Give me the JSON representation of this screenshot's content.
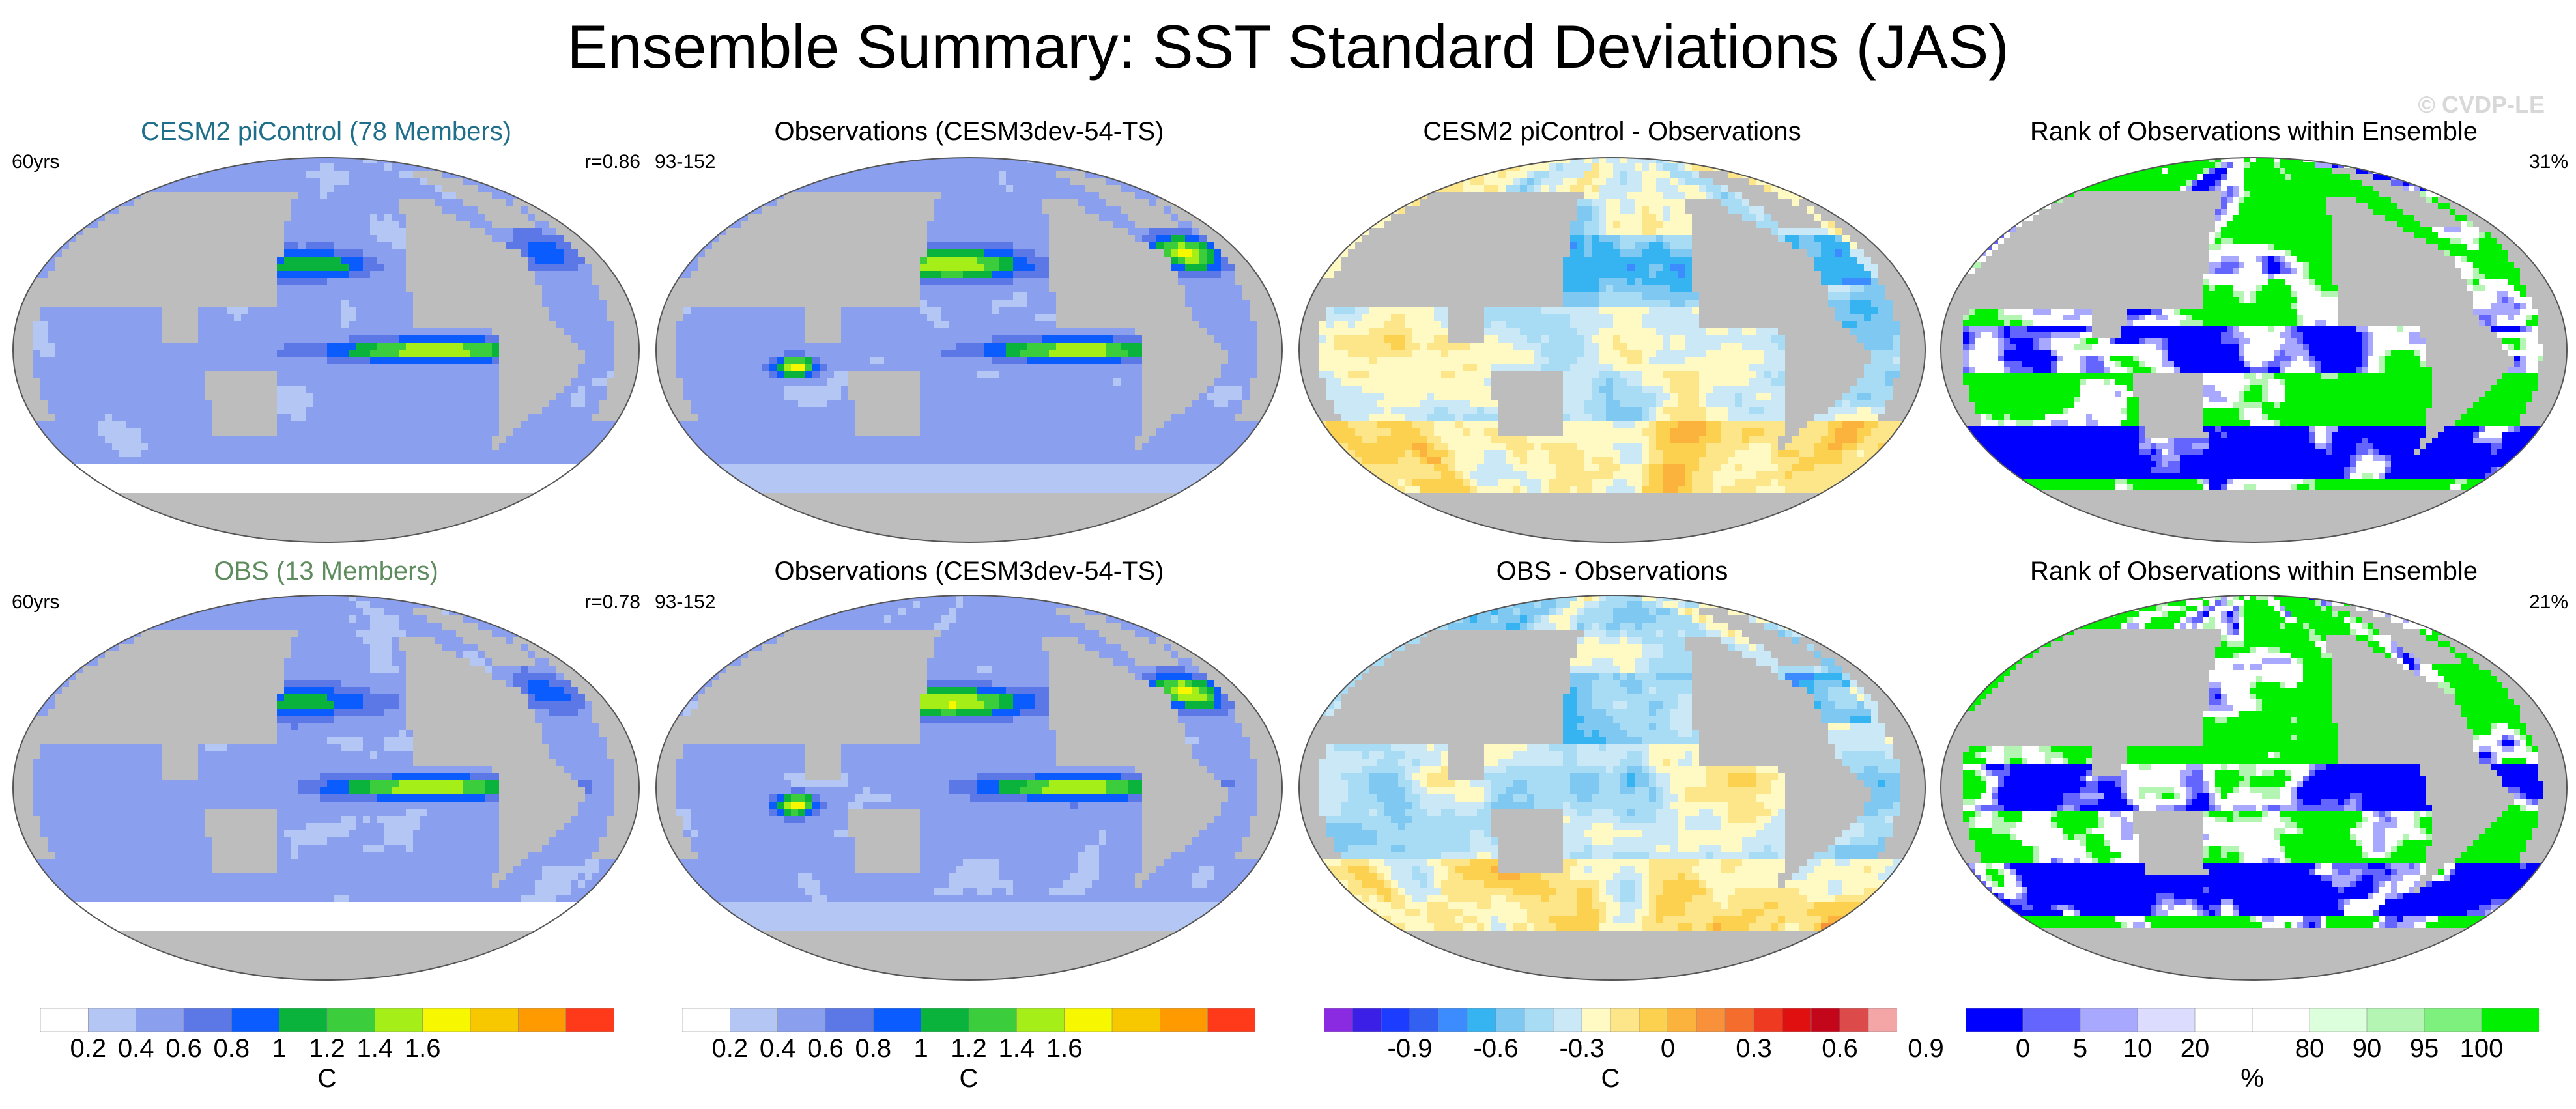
{
  "page": {
    "title": "Ensemble Summary: SST Standard Deviations (JAS)",
    "copyright": "© CVDP-LE"
  },
  "colors": {
    "land": "#bdbdbd",
    "sd_scale": [
      "#ffffff",
      "#b4c6f4",
      "#8aa0ef",
      "#5b78e6",
      "#0a5cff",
      "#0ab43c",
      "#3ccd3c",
      "#a6ee17",
      "#f7f700",
      "#f7c800",
      "#ff9a00",
      "#ff3a1a"
    ],
    "diff_scale": [
      "#8a2be2",
      "#3c1fe6",
      "#1c3cff",
      "#3260f0",
      "#3c8cff",
      "#36b4f2",
      "#7ec8f2",
      "#a8dcf4",
      "#cbe8f7",
      "#fff9c4",
      "#fde68a",
      "#fdd150",
      "#fbb33d",
      "#f8913a",
      "#f46d2c",
      "#ef3a22",
      "#e01010",
      "#c4061a",
      "#dd4a4a",
      "#f4a5a5"
    ],
    "rank_scale": [
      "#0000ff",
      "#6464ff",
      "#a8a8ff",
      "#dcdcff",
      "#ffffff",
      "#ffffff",
      "#dcffdc",
      "#b4f5b4",
      "#7ef07e",
      "#00f000"
    ]
  },
  "panels": [
    {
      "title": "CESM2 piControl (78 Members)",
      "left_note": "60yrs",
      "right_note": "r=0.86",
      "map_type": "sd"
    },
    {
      "title": "Observations (CESM3dev-54-TS)",
      "left_note": "93-152",
      "right_note": "",
      "map_type": "sd_obs"
    },
    {
      "title": "CESM2 piControl - Observations",
      "left_note": "",
      "right_note": "",
      "map_type": "diff"
    },
    {
      "title": "Rank of Observations within Ensemble",
      "left_note": "",
      "right_note": "31%",
      "map_type": "rank"
    },
    {
      "title": "OBS (13 Members)",
      "left_note": "60yrs",
      "right_note": "r=0.78",
      "map_type": "sd"
    },
    {
      "title": "Observations (CESM3dev-54-TS)",
      "left_note": "93-152",
      "right_note": "",
      "map_type": "sd_obs"
    },
    {
      "title": "OBS - Observations",
      "left_note": "",
      "right_note": "",
      "map_type": "diff"
    },
    {
      "title": "Rank of Observations within Ensemble",
      "left_note": "",
      "right_note": "21%",
      "map_type": "rank"
    }
  ],
  "chart_data": [
    {
      "type": "heatmap",
      "title": "CESM2 piControl (78 Members)",
      "variable": "SST standard deviation",
      "units": "C",
      "colorbar_levels": [
        0.2,
        0.4,
        0.6,
        0.8,
        1,
        1.2,
        1.4,
        1.6
      ],
      "annotation_left": "60yrs",
      "annotation_right": "r=0.86"
    },
    {
      "type": "heatmap",
      "title": "Observations (CESM3dev-54-TS)",
      "variable": "SST standard deviation",
      "units": "C",
      "colorbar_levels": [
        0.2,
        0.4,
        0.6,
        0.8,
        1,
        1.2,
        1.4,
        1.6
      ],
      "annotation_left": "93-152"
    },
    {
      "type": "heatmap",
      "title": "CESM2 piControl - Observations",
      "variable": "SST standard deviation difference",
      "units": "C",
      "colorbar_levels": [
        -0.9,
        -0.6,
        -0.3,
        0,
        0.3,
        0.6,
        0.9
      ]
    },
    {
      "type": "heatmap",
      "title": "Rank of Observations within Ensemble",
      "units": "%",
      "colorbar_levels": [
        0,
        5,
        10,
        20,
        80,
        90,
        95,
        100
      ],
      "annotation_right": "31%"
    },
    {
      "type": "heatmap",
      "title": "OBS (13 Members)",
      "variable": "SST standard deviation",
      "units": "C",
      "colorbar_levels": [
        0.2,
        0.4,
        0.6,
        0.8,
        1,
        1.2,
        1.4,
        1.6
      ],
      "annotation_left": "60yrs",
      "annotation_right": "r=0.78"
    },
    {
      "type": "heatmap",
      "title": "Observations (CESM3dev-54-TS)",
      "variable": "SST standard deviation",
      "units": "C",
      "colorbar_levels": [
        0.2,
        0.4,
        0.6,
        0.8,
        1,
        1.2,
        1.4,
        1.6
      ],
      "annotation_left": "93-152"
    },
    {
      "type": "heatmap",
      "title": "OBS - Observations",
      "variable": "SST standard deviation difference",
      "units": "C",
      "colorbar_levels": [
        -0.9,
        -0.6,
        -0.3,
        0,
        0.3,
        0.6,
        0.9
      ]
    },
    {
      "type": "heatmap",
      "title": "Rank of Observations within Ensemble",
      "units": "%",
      "colorbar_levels": [
        0,
        5,
        10,
        20,
        80,
        90,
        95,
        100
      ],
      "annotation_right": "21%"
    }
  ],
  "colorbars": [
    {
      "unit": "C",
      "scale": "sd_scale",
      "labels": [
        "0.2",
        "0.4",
        "0.6",
        "0.8",
        "1",
        "1.2",
        "1.4",
        "1.6"
      ],
      "label_boxes": [
        1,
        2,
        3,
        4,
        5,
        6,
        7,
        8
      ]
    },
    {
      "unit": "C",
      "scale": "sd_scale",
      "labels": [
        "0.2",
        "0.4",
        "0.6",
        "0.8",
        "1",
        "1.2",
        "1.4",
        "1.6"
      ],
      "label_boxes": [
        1,
        2,
        3,
        4,
        5,
        6,
        7,
        8
      ]
    },
    {
      "unit": "C",
      "scale": "diff_scale",
      "labels": [
        "-0.9",
        "-0.6",
        "-0.3",
        "0",
        "0.3",
        "0.6",
        "0.9"
      ],
      "label_boxes": [
        3,
        6,
        9,
        12,
        15,
        18,
        21
      ]
    },
    {
      "unit": "%",
      "scale": "rank_scale",
      "labels": [
        "0",
        "5",
        "10",
        "20",
        "80",
        "90",
        "95",
        "100"
      ],
      "label_boxes": [
        1,
        2,
        3,
        4,
        6,
        7,
        8,
        9
      ]
    }
  ]
}
